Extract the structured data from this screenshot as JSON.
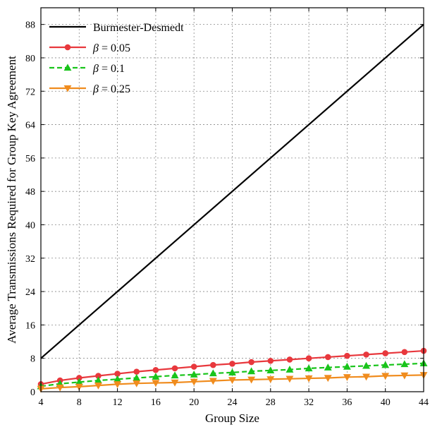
{
  "chart_data": {
    "type": "line",
    "xlabel": "Group Size",
    "ylabel": "Average Transmissions Required for Group Key Agreement",
    "xlim": [
      4,
      44
    ],
    "ylim": [
      0,
      92
    ],
    "xticks": [
      4,
      8,
      12,
      16,
      20,
      24,
      28,
      32,
      36,
      40,
      44
    ],
    "yticks": [
      0,
      8,
      16,
      24,
      32,
      40,
      48,
      56,
      64,
      72,
      80,
      88
    ],
    "grid": true,
    "legend_position": "top-left",
    "series": [
      {
        "name": "Burmester-Desmedt",
        "color": "#000000",
        "marker": "none",
        "dash": "solid",
        "x": [
          4,
          44
        ],
        "y": [
          8,
          88
        ]
      },
      {
        "name": "β = 0.05",
        "name_prefix": "β",
        "name_suffix": "= 0.05",
        "color": "#e8383d",
        "marker": "circle",
        "dash": "solid",
        "x": [
          4,
          6,
          8,
          10,
          12,
          14,
          16,
          18,
          20,
          22,
          24,
          26,
          28,
          30,
          32,
          34,
          36,
          38,
          40,
          42,
          44
        ],
        "y": [
          1.8,
          2.7,
          3.3,
          3.8,
          4.3,
          4.8,
          5.2,
          5.6,
          6.0,
          6.4,
          6.7,
          7.1,
          7.4,
          7.7,
          8.0,
          8.3,
          8.6,
          8.9,
          9.2,
          9.5,
          9.8
        ]
      },
      {
        "name": "β = 0.1",
        "name_prefix": "β",
        "name_suffix": "= 0.1",
        "color": "#19c41b",
        "marker": "triangle-up",
        "dash": "dashed",
        "x": [
          4,
          6,
          8,
          10,
          12,
          14,
          16,
          18,
          20,
          22,
          24,
          26,
          28,
          30,
          32,
          34,
          36,
          38,
          40,
          42,
          44
        ],
        "y": [
          1.3,
          1.9,
          2.3,
          2.7,
          3.0,
          3.3,
          3.6,
          3.9,
          4.1,
          4.4,
          4.6,
          4.9,
          5.1,
          5.3,
          5.6,
          5.8,
          6.0,
          6.2,
          6.4,
          6.6,
          6.8
        ]
      },
      {
        "name": "β = 0.25",
        "name_prefix": "β",
        "name_suffix": "= 0.25",
        "color": "#f08c1e",
        "marker": "triangle-down",
        "dash": "solid",
        "x": [
          4,
          6,
          8,
          10,
          12,
          14,
          16,
          18,
          20,
          22,
          24,
          26,
          28,
          30,
          32,
          34,
          36,
          38,
          40,
          42,
          44
        ],
        "y": [
          0.7,
          1.0,
          1.2,
          1.5,
          1.8,
          2.0,
          2.1,
          2.2,
          2.4,
          2.6,
          2.8,
          2.9,
          3.0,
          3.1,
          3.2,
          3.3,
          3.5,
          3.6,
          3.8,
          3.9,
          4.0
        ]
      }
    ]
  }
}
